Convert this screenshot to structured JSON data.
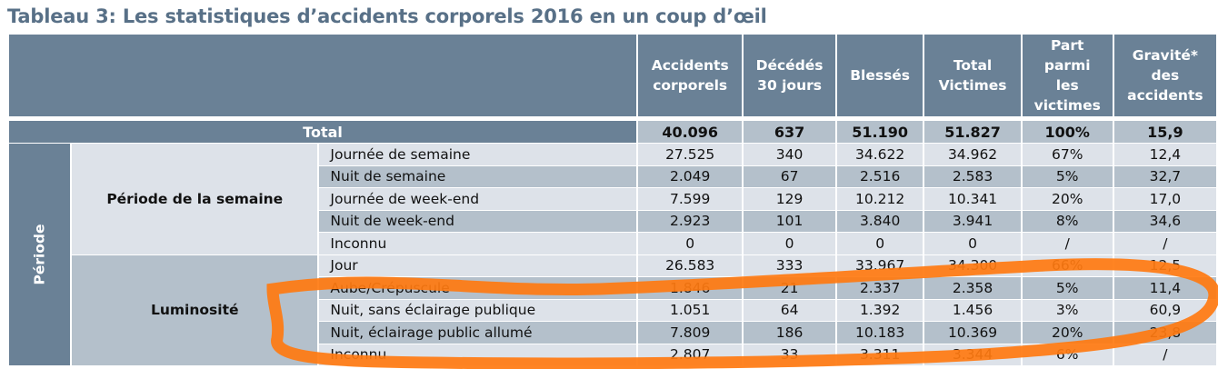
{
  "title": "Tableau 3: Les statistiques d’accidents corporels 2016 en un coup d’œil",
  "columns": [
    "Accidents corporels",
    "Décédés 30 jours",
    "Blessés",
    "Total Victimes",
    "Part parmi les victimes",
    "Gravité* des accidents"
  ],
  "total": {
    "label": "Total",
    "values": [
      "40.096",
      "637",
      "51.190",
      "51.827",
      "100%",
      "15,9"
    ]
  },
  "period_label": "Période",
  "groups": [
    {
      "label": "Période de la semaine",
      "rows": [
        {
          "label": "Journée de semaine",
          "values": [
            "27.525",
            "340",
            "34.622",
            "34.962",
            "67%",
            "12,4"
          ]
        },
        {
          "label": "Nuit de semaine",
          "values": [
            "2.049",
            "67",
            "2.516",
            "2.583",
            "5%",
            "32,7"
          ]
        },
        {
          "label": "Journée de week-end",
          "values": [
            "7.599",
            "129",
            "10.212",
            "10.341",
            "20%",
            "17,0"
          ]
        },
        {
          "label": "Nuit de week-end",
          "values": [
            "2.923",
            "101",
            "3.840",
            "3.941",
            "8%",
            "34,6"
          ]
        },
        {
          "label": "Inconnu",
          "values": [
            "0",
            "0",
            "0",
            "0",
            "/",
            "/"
          ]
        }
      ]
    },
    {
      "label": "Luminosité",
      "rows": [
        {
          "label": "Jour",
          "values": [
            "26.583",
            "333",
            "33.967",
            "34.300",
            "66%",
            "12,5"
          ]
        },
        {
          "label": "Aube/Crépuscule",
          "values": [
            "1.846",
            "21",
            "2.337",
            "2.358",
            "5%",
            "11,4"
          ]
        },
        {
          "label": "Nuit, sans éclairage publique",
          "values": [
            "1.051",
            "64",
            "1.392",
            "1.456",
            "3%",
            "60,9"
          ]
        },
        {
          "label": "Nuit, éclairage public allumé",
          "values": [
            "7.809",
            "186",
            "10.183",
            "10.369",
            "20%",
            "23,8"
          ]
        },
        {
          "label": "Inconnu",
          "values": [
            "2.807",
            "33",
            "3.311",
            "3.344",
            "6%",
            "/"
          ]
        }
      ]
    }
  ],
  "colors": {
    "header": "#6a8196",
    "light": "#dde2e9",
    "dark": "#b4c0cb",
    "annotation": "#ff7a10"
  }
}
